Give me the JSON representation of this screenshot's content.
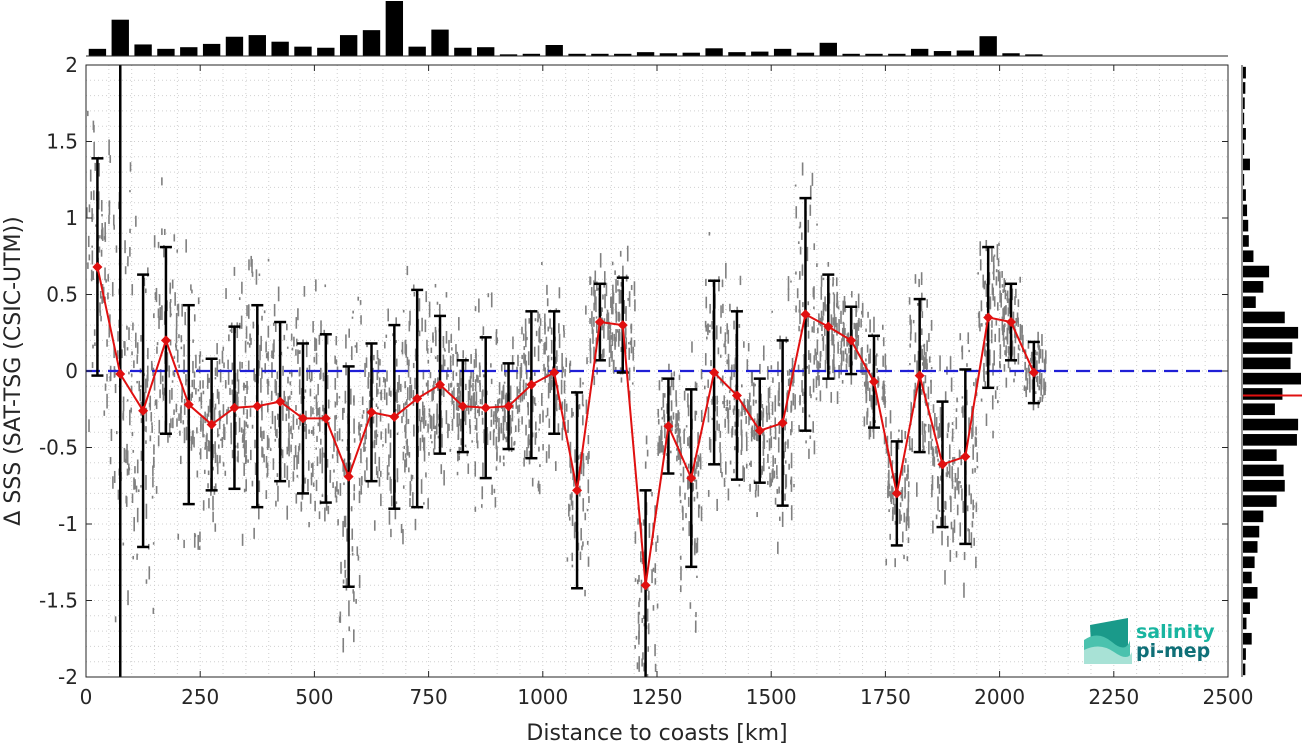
{
  "chart_data": {
    "type": "line",
    "xlabel": "Distance to coasts [km]",
    "ylabel": "Δ SSS (SAT-TSG (CSIC-UTM))",
    "xlim": [
      0,
      2500
    ],
    "ylim": [
      -2,
      2
    ],
    "x_ticks": [
      0,
      250,
      500,
      750,
      1000,
      1250,
      1500,
      1750,
      2000,
      2250,
      2500
    ],
    "x_tick_labels": [
      "0",
      "250",
      "500",
      "750",
      "1000",
      "1250",
      "1500",
      "1750",
      "2000",
      "2250",
      "2500"
    ],
    "y_ticks": [
      2,
      1.5,
      1,
      0.5,
      0,
      -0.5,
      -1,
      -1.5,
      -2
    ],
    "y_tick_labels": [
      "2",
      "1.5",
      "1",
      "0.5",
      "0",
      "-0.5",
      "-1",
      "-1.5",
      "-2"
    ],
    "grid": true,
    "reference_line": {
      "y": 0,
      "color": "#1f1fd6",
      "style": "dashed"
    },
    "colors": {
      "mean_line": "#e01010",
      "error_bars": "#000000",
      "scatter": "#808080",
      "histograms": "#000000"
    },
    "series": [
      {
        "x": [
          25,
          75,
          125,
          175,
          225,
          275,
          325,
          375,
          425,
          475,
          525,
          575,
          625,
          675,
          725,
          775,
          825,
          875,
          925,
          975,
          1025,
          1075,
          1125,
          1175,
          1225,
          1275,
          1325,
          1375,
          1425,
          1475,
          1525,
          1575,
          1625,
          1675,
          1725,
          1775,
          1825,
          1875,
          1925,
          1975,
          2025,
          2075
        ],
        "y": [
          0.68,
          -0.02,
          -0.26,
          0.2,
          -0.22,
          -0.35,
          -0.24,
          -0.23,
          -0.2,
          -0.31,
          -0.31,
          -0.69,
          -0.27,
          -0.3,
          -0.18,
          -0.09,
          -0.23,
          -0.24,
          -0.23,
          -0.09,
          -0.01,
          -0.78,
          0.32,
          0.3,
          -1.4,
          -0.36,
          -0.7,
          -0.01,
          -0.16,
          -0.39,
          -0.34,
          0.37,
          0.29,
          0.2,
          -0.07,
          -0.8,
          -0.03,
          -0.61,
          -0.56,
          0.35,
          0.32,
          -0.01
        ],
        "error": [
          0.71,
          2.5,
          0.89,
          0.61,
          0.65,
          0.43,
          0.53,
          0.66,
          0.52,
          0.49,
          0.55,
          0.72,
          0.45,
          0.6,
          0.71,
          0.45,
          0.3,
          0.46,
          0.28,
          0.48,
          0.4,
          0.64,
          0.25,
          0.31,
          0.62,
          0.31,
          0.58,
          0.6,
          0.55,
          0.34,
          0.54,
          0.76,
          0.34,
          0.22,
          0.3,
          0.34,
          0.5,
          0.41,
          0.57,
          0.46,
          0.25,
          0.2
        ]
      }
    ],
    "top_histogram": {
      "bins_x": [
        25,
        75,
        125,
        175,
        225,
        275,
        325,
        375,
        425,
        475,
        525,
        575,
        625,
        675,
        725,
        775,
        825,
        875,
        925,
        975,
        1025,
        1075,
        1125,
        1175,
        1225,
        1275,
        1325,
        1375,
        1425,
        1475,
        1525,
        1575,
        1625,
        1675,
        1725,
        1775,
        1825,
        1875,
        1925,
        1975,
        2025,
        2075,
        2125,
        2175,
        2225,
        2275,
        2325,
        2375,
        2425,
        2475
      ],
      "counts": [
        0.13,
        0.66,
        0.21,
        0.13,
        0.16,
        0.22,
        0.35,
        0.38,
        0.26,
        0.17,
        0.15,
        0.38,
        0.47,
        1.0,
        0.17,
        0.48,
        0.15,
        0.16,
        0.03,
        0.04,
        0.2,
        0.04,
        0.04,
        0.04,
        0.07,
        0.05,
        0.06,
        0.14,
        0.07,
        0.08,
        0.13,
        0.06,
        0.24,
        0.04,
        0.04,
        0.04,
        0.13,
        0.09,
        0.1,
        0.36,
        0.05,
        0.03,
        0,
        0,
        0,
        0,
        0,
        0,
        0,
        0
      ]
    },
    "right_histogram": {
      "bins_y": [
        1.95,
        1.85,
        1.75,
        1.65,
        1.55,
        1.45,
        1.35,
        1.25,
        1.15,
        1.05,
        0.95,
        0.85,
        0.75,
        0.65,
        0.55,
        0.45,
        0.35,
        0.25,
        0.15,
        0.05,
        -0.05,
        -0.15,
        -0.25,
        -0.35,
        -0.45,
        -0.55,
        -0.65,
        -0.75,
        -0.85,
        -0.95,
        -1.05,
        -1.15,
        -1.25,
        -1.35,
        -1.45,
        -1.55,
        -1.65,
        -1.75,
        -1.85,
        -1.95
      ],
      "counts": [
        0.05,
        0.04,
        0.03,
        0.02,
        0.05,
        0.02,
        0.12,
        0.02,
        0.05,
        0.07,
        0.09,
        0.1,
        0.18,
        0.45,
        0.35,
        0.22,
        0.72,
        0.95,
        0.85,
        0.82,
        1.0,
        0.68,
        0.55,
        0.95,
        0.93,
        0.58,
        0.7,
        0.72,
        0.58,
        0.35,
        0.28,
        0.25,
        0.2,
        0.15,
        0.25,
        0.12,
        0.06,
        0.15,
        0.05,
        0.04
      ],
      "median_y": -0.16
    },
    "logo": {
      "line1": "salinity",
      "line2": "pi-mep"
    }
  }
}
